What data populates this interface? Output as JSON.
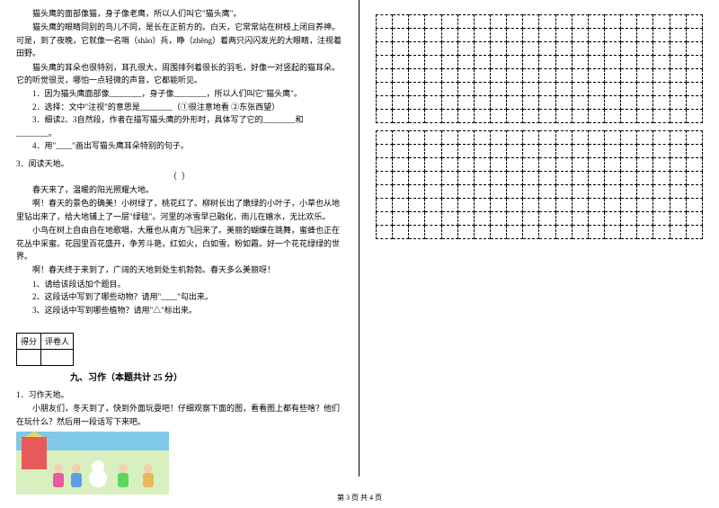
{
  "left": {
    "p1": "猫头鹰的面部像猫，身子像老鹰，所以人们叫它\"猫头鹰\"。",
    "p2": "猫头鹰的眼睛同别的鸟儿不同，是长在正前方的。白天，它常常站在树枝上闭目养神。可是，到了夜晚，它就像一名哨（shào）兵，睁（zhēng）着两只闪闪发光的大眼睛，注视着田野。",
    "p3": "猫头鹰的耳朵也很特别，耳孔很大，周围排列着很长的羽毛，好像一对竖起的猫耳朵。它的听觉很灵，哪怕一点轻微的声音，它都能听见。",
    "q1": "1．因为猫头鹰面部像________，身子像________，所以人们叫它\"猫头鹰\"。",
    "q2": "2．选择：文中\"注视\"的意思是________（①很注意地看  ②东张西望）",
    "q3": "3．细读2、3自然段，作者在描写猫头鹰的外形时，具体写了它的________和________。",
    "q4": "4．用\"____\"画出写猫头鹰耳朵特别的句子。",
    "read_num": "3．阅读天地。",
    "paren": "（        ）",
    "r1": "春天来了，温暖的阳光照耀大地。",
    "r2": "啊！春天的景色的确美！小树绿了，桃花红了。柳树长出了嫩绿的小叶子，小草也从地里钻出来了，给大地铺上了一层\"绿毯\"。河里的冰雪早已融化，雨儿在嬉水，无比欢乐。",
    "r3": "小鸟在树上自由自在地歌唱，大雁也从南方飞回来了。美丽的蝴蝶在跳舞，蜜蜂也正在花丛中采蜜。花园里百花盛开，争芳斗艳，红如火，白如雪，粉如霞。好一个花花绿绿的世界。",
    "r4": "啊！春天终于来到了，广阔的天地到处生机勃勃。春天多么美丽呀！",
    "rq1": "1、请给该段话加个题目。",
    "rq2": "2、这段话中写到了哪些动物？请用\"____\"勾出来。",
    "rq3": "3、这段话中写到哪些植物？请用\"△\"标出来。",
    "score_h1": "得分",
    "score_h2": "评卷人",
    "section_title": "九、习作（本题共计 25 分）",
    "writing_num": "1．习作天地。",
    "writing_p": "小朋友们，冬天到了，快到外面玩耍吧！仔细观察下面的图，看看图上都有些啥？他们在玩什么？然后用一段话写下来吧。"
  },
  "footer": "第 3 页  共 4 页",
  "grid": {
    "box1_rows": 8,
    "box2_rows": 8,
    "cols": 20
  },
  "colors": {
    "text": "#000000",
    "bg": "#ffffff",
    "border": "#000000"
  }
}
